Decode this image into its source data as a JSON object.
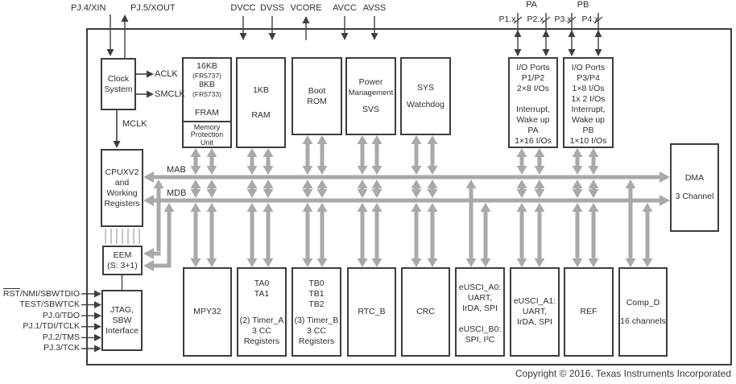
{
  "colors": {
    "bus_gray": "#a9a9a9",
    "line_dark": "#3f3f3f",
    "hatch_gray": "#9f9f9f"
  },
  "pins": {
    "xin": "PJ.4/XIN",
    "xout": "PJ.5/XOUT",
    "power": [
      "DVCC",
      "DVSS",
      "VCORE",
      "AVCC",
      "AVSS"
    ],
    "port_group_a": "PA",
    "port_group_b": "PB",
    "ports": [
      "P1.x",
      "P2.x",
      "P3.x",
      "P4.x"
    ],
    "jtag": [
      {
        "bar": "RST",
        "rest": "/NMI/SBWTDIO"
      },
      {
        "bar": "",
        "rest": "TEST/SBWTCK"
      },
      {
        "bar": "",
        "rest": "PJ.0/TDO"
      },
      {
        "bar": "",
        "rest": "PJ.1/TDI/TCLK"
      },
      {
        "bar": "",
        "rest": "PJ.2/TMS"
      },
      {
        "bar": "",
        "rest": "PJ.3/TCK"
      }
    ]
  },
  "clock_signals": {
    "aclk": "ACLK",
    "smclk": "SMCLK",
    "mclk": "MCLK"
  },
  "buses": {
    "mab": "MAB",
    "mdb": "MDB"
  },
  "blocks": {
    "clock": {
      "lines": [
        "Clock",
        "System"
      ]
    },
    "fram": {
      "lines": [
        "16KB",
        "(FR5737)",
        "8KB",
        "(FR5733)"
      ],
      "name": "FRAM",
      "mpu": [
        "Memory",
        "Protection",
        "Unit"
      ]
    },
    "ram": {
      "lines": [
        "1KB",
        "RAM"
      ]
    },
    "bootrom": {
      "lines": [
        "Boot",
        "ROM"
      ]
    },
    "pmm": {
      "lines": [
        "Power",
        "Management",
        "SVS"
      ]
    },
    "sys": {
      "lines": [
        "SYS",
        "Watchdog"
      ]
    },
    "io12": {
      "lines": [
        "I/O Ports",
        "P1/P2",
        "2×8 I/Os",
        "Interrupt,",
        "Wake up",
        "PA",
        "1×16 I/Os"
      ]
    },
    "io34": {
      "lines": [
        "I/O Ports",
        "P3/P4",
        "1×8 I/Os",
        "1x 2 I/Os",
        "Interrupt,",
        "Wake up",
        "PB",
        "1×10 I/Os"
      ]
    },
    "cpu": {
      "lines": [
        "CPUXV2",
        "and",
        "Working",
        "Registers"
      ]
    },
    "eem": {
      "lines": [
        "EEM",
        "(S: 3+1)"
      ]
    },
    "jtag": {
      "lines": [
        "JTAG,",
        "SBW",
        "Interface"
      ]
    },
    "dma": {
      "lines": [
        "DMA",
        "3 Channel"
      ]
    },
    "mpy": {
      "lines": [
        "MPY32"
      ]
    },
    "timer_a": {
      "top": [
        "TA0",
        "TA1"
      ],
      "bottom": [
        "(2) Timer_A",
        "3 CC",
        "Registers"
      ]
    },
    "timer_b": {
      "top": [
        "TB0",
        "TB1",
        "TB2"
      ],
      "bottom": [
        "(3) Timer_B",
        "3 CC",
        "Registers"
      ]
    },
    "rtc": {
      "lines": [
        "RTC_B"
      ]
    },
    "crc": {
      "lines": [
        "CRC"
      ]
    },
    "usci_a0": {
      "top": [
        "eUSCI_A0:",
        "UART,",
        "IrDA, SPI"
      ],
      "bottom": [
        "eUSCI_B0:",
        "SPI, I²C"
      ]
    },
    "usci_a1": {
      "lines": [
        "eUSCI_A1:",
        "UART,",
        "IrDA, SPI"
      ]
    },
    "ref": {
      "lines": [
        "REF"
      ]
    },
    "comp": {
      "lines": [
        "Comp_D",
        "16 channels"
      ]
    }
  },
  "footer": {
    "copyright": "Copyright © 2016, Texas Instruments Incorporated"
  }
}
